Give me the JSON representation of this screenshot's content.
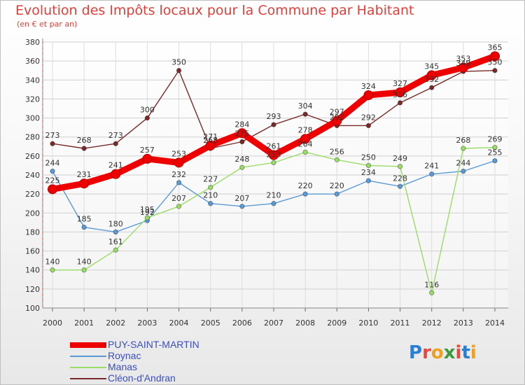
{
  "header": {
    "title": "Evolution des Impôts locaux pour la Commune par Habitant",
    "subtitle": "(en € et par an)"
  },
  "colors": {
    "title": "#e0403a",
    "legend_text": "#3b4fbf",
    "axis": "#555555"
  },
  "logo": {
    "text": "Proxiti",
    "letters": [
      {
        "ch": "P",
        "color": "#2a7fd4"
      },
      {
        "ch": "r",
        "color": "#e8483a"
      },
      {
        "ch": "o",
        "color": "#f0a020"
      },
      {
        "ch": "x",
        "color": "#3c9a3c"
      },
      {
        "ch": "i",
        "color": "#e8483a"
      },
      {
        "ch": "t",
        "color": "#2a7fd4"
      },
      {
        "ch": "i",
        "color": "#f0a020"
      }
    ]
  },
  "chart_data": {
    "type": "line",
    "title": "Evolution des Impôts locaux pour la Commune par Habitant",
    "subtitle": "(en € et par an)",
    "x": [
      "2000",
      "2001",
      "2002",
      "2003",
      "2004",
      "2005",
      "2006",
      "2007",
      "2008",
      "2009",
      "2010",
      "2011",
      "2012",
      "2013",
      "2014"
    ],
    "ylim": [
      100,
      380
    ],
    "yticks": [
      100,
      120,
      140,
      160,
      180,
      200,
      220,
      240,
      260,
      280,
      300,
      320,
      340,
      360,
      380
    ],
    "grid": true,
    "legend_position": "bottom-left",
    "series": [
      {
        "name": "PUY-SAINT-MARTIN",
        "color": "#ee0000",
        "values": [
          225,
          231,
          241,
          257,
          253,
          271,
          284,
          261,
          278,
          297,
          324,
          327,
          345,
          353,
          365
        ],
        "labels": [
          "225",
          "231",
          "241",
          "257",
          "253",
          "271",
          "284",
          "261",
          "278",
          "297",
          "324",
          "327",
          "345",
          "353",
          "365"
        ]
      },
      {
        "name": "Roynac",
        "color": "#5b9bd5",
        "values": [
          244,
          185,
          180,
          192,
          232,
          210,
          207,
          210,
          220,
          220,
          234,
          228,
          241,
          244,
          255
        ],
        "labels": [
          "244",
          "185",
          "180",
          "192",
          "232",
          "210",
          "207",
          "210",
          "220",
          "220",
          "234",
          "228",
          "241",
          "244",
          "255"
        ]
      },
      {
        "name": "Manas",
        "color": "#99dd66",
        "values": [
          140,
          140,
          161,
          195,
          207,
          227,
          248,
          253,
          264,
          256,
          250,
          249,
          116,
          268,
          269
        ],
        "labels": [
          "140",
          "140",
          "161",
          "195",
          "207",
          "227",
          "248",
          "253",
          "264",
          "256",
          "250",
          "249",
          "116",
          "268",
          "269"
        ]
      },
      {
        "name": "Cléon-d'Andran",
        "color": "#7a2a2a",
        "values": [
          273,
          268,
          273,
          300,
          350,
          268,
          275,
          293,
          304,
          292,
          292,
          316,
          332,
          349,
          350
        ],
        "labels": [
          "273",
          "268",
          "273",
          "300",
          "350",
          "268",
          "275",
          "293",
          "304",
          "292",
          "292",
          "316",
          "332",
          "349",
          "350"
        ]
      }
    ]
  }
}
